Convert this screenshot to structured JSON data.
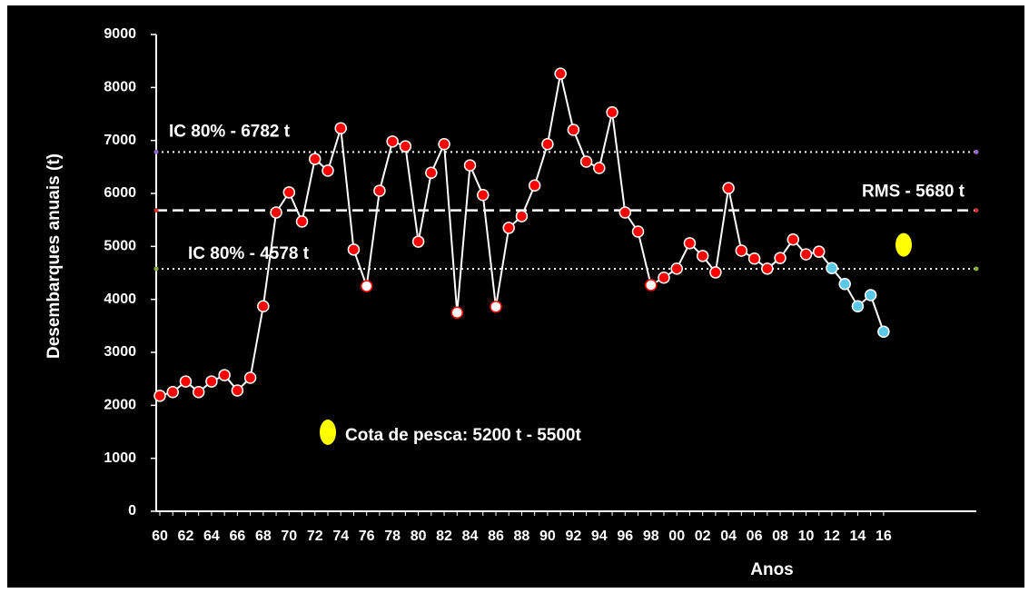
{
  "chart_data": {
    "type": "line",
    "y_label": "Desembarques anuais (t)",
    "x_label": "Anos",
    "categories": [
      "60",
      null,
      "62",
      null,
      "64",
      null,
      "66",
      null,
      "68",
      null,
      "70",
      null,
      "72",
      null,
      "74",
      null,
      "76",
      null,
      "78",
      null,
      "80",
      null,
      "82",
      null,
      "84",
      null,
      "86",
      null,
      "88",
      null,
      "90",
      null,
      "92",
      null,
      "94",
      null,
      "96",
      null,
      "98",
      null,
      "00",
      null,
      "02",
      null,
      "04",
      null,
      "06",
      null,
      "08",
      null,
      "10",
      null,
      "12",
      null,
      "14",
      null,
      "16"
    ],
    "series": [
      {
        "color": "#ffffff",
        "values": [
          2180,
          2250,
          2450,
          2250,
          2450,
          2570,
          2280,
          2520,
          3870,
          5640,
          6020,
          5470,
          6650,
          6430,
          7230,
          4940,
          4250,
          6050,
          6980,
          6890,
          5090,
          6390,
          6930,
          3750,
          6530,
          5970,
          3860,
          5350,
          5570,
          6150,
          6930,
          8260,
          7200,
          6600,
          6480,
          7530,
          5640,
          5280,
          4270,
          4410,
          4580,
          5060,
          4820,
          4510,
          6100,
          4920,
          4770,
          4580,
          4780,
          5130,
          4850,
          4900,
          4590,
          4290,
          3870,
          4080,
          3390
        ],
        "marker_colors": [
          "#ff0000",
          "#ff0000",
          "#ff0000",
          "#ff0000",
          "#ff0000",
          "#ff0000",
          "#ff0000",
          "#ff0000",
          "#ff0000",
          "#ff0000",
          "#ff0000",
          "#ff0000",
          "#ff0000",
          "#ff0000",
          "#ff0000",
          "#ff0000",
          "#ffffff",
          "#ff0000",
          "#ff0000",
          "#ff0000",
          "#ff0000",
          "#ff0000",
          "#ff0000",
          "#ffffff",
          "#ff0000",
          "#ff0000",
          "#ffffff",
          "#ff0000",
          "#ff0000",
          "#ff0000",
          "#ff0000",
          "#ff0000",
          "#ff0000",
          "#ff0000",
          "#ff0000",
          "#ff0000",
          "#ff0000",
          "#ff0000",
          "#ffffff",
          "#ff0000",
          "#ff0000",
          "#ff0000",
          "#ff0000",
          "#ff0000",
          "#ff0000",
          "#ff0000",
          "#ff0000",
          "#ff0000",
          "#ff0000",
          "#ff0000",
          "#ff0000",
          "#ff0000",
          "#5bc8e8",
          "#5bc8e8",
          "#5bc8e8",
          "#5bc8e8",
          "#5bc8e8"
        ]
      }
    ],
    "ylim": [
      0,
      9000
    ],
    "yticks": [
      0,
      1000,
      2000,
      3000,
      4000,
      5000,
      6000,
      7000,
      8000,
      9000
    ],
    "reference_lines": [
      {
        "value": 6782,
        "label": "IC 80%  - 6782 t",
        "style": "dotted",
        "end_color": "#9966cc"
      },
      {
        "value": 5680,
        "label": "RMS - 5680 t",
        "style": "dashed",
        "end_color": "#cc3333"
      },
      {
        "value": 4578,
        "label": "IC 80%  - 4578 t",
        "style": "dotted",
        "end_color": "#88aa44"
      }
    ],
    "annotation": {
      "text": "Cota de pesca: 5200 t - 5500t",
      "color": "#ffff00",
      "marker_value": 5030
    }
  }
}
